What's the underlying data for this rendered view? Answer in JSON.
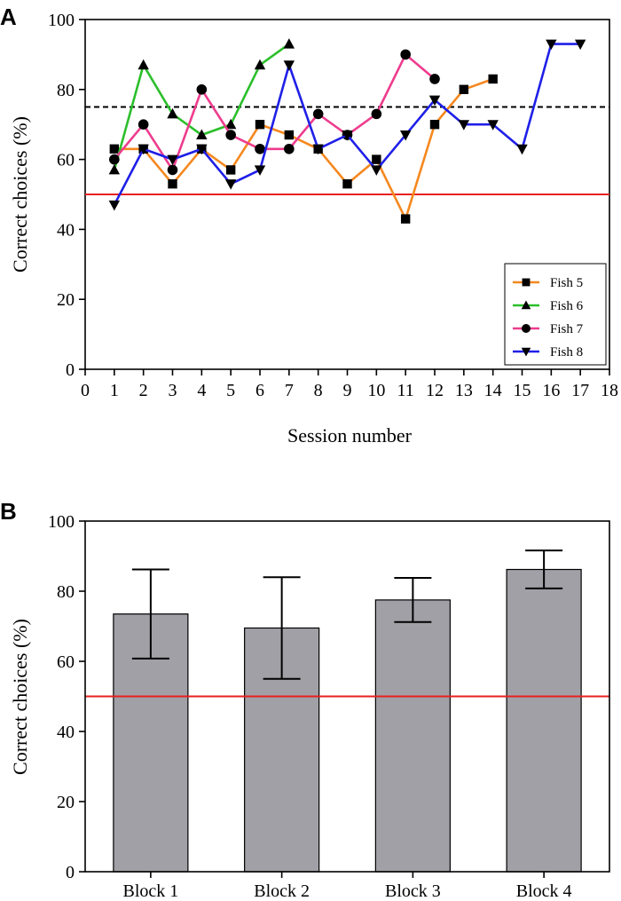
{
  "chart_data": [
    {
      "panel_label": "A",
      "type": "line",
      "title": "",
      "xlabel": "Session number",
      "ylabel": "Correct choices (%)",
      "xlim": [
        0,
        18
      ],
      "ylim": [
        0,
        100
      ],
      "xticks": [
        "0",
        "1",
        "2",
        "3",
        "4",
        "5",
        "6",
        "7",
        "8",
        "9",
        "10",
        "11",
        "12",
        "13",
        "14",
        "15",
        "16",
        "17",
        "18"
      ],
      "yticks": [
        "0",
        "20",
        "40",
        "60",
        "80",
        "100"
      ],
      "reference_lines": [
        {
          "name": "chance level",
          "y": 50,
          "color": "#e8201f",
          "style": "solid"
        },
        {
          "name": "criterion",
          "y": 75,
          "color": "#000000",
          "style": "dashed"
        }
      ],
      "legend_position": "bottom-right",
      "series": [
        {
          "name": "Fish 5",
          "color": "#f5881f",
          "marker": "square",
          "x": [
            1,
            2,
            3,
            4,
            5,
            6,
            7,
            8,
            9,
            10,
            11,
            12,
            13,
            14
          ],
          "values": [
            63,
            63,
            53,
            63,
            57,
            70,
            67,
            63,
            53,
            60,
            43,
            70,
            80,
            83
          ]
        },
        {
          "name": "Fish 6",
          "color": "#2bbf2b",
          "marker": "triangle-up",
          "x": [
            1,
            2,
            3,
            4,
            5,
            6,
            7
          ],
          "values": [
            57,
            87,
            73,
            67,
            70,
            87,
            93
          ]
        },
        {
          "name": "Fish 7",
          "color": "#ee3c8e",
          "marker": "circle",
          "x": [
            1,
            2,
            3,
            4,
            5,
            6,
            7,
            8,
            9,
            10,
            11,
            12
          ],
          "values": [
            60,
            70,
            57,
            80,
            67,
            63,
            63,
            73,
            67,
            73,
            90,
            83
          ]
        },
        {
          "name": "Fish 8",
          "color": "#1f1fe8",
          "marker": "triangle-down",
          "x": [
            1,
            2,
            3,
            4,
            5,
            6,
            7,
            8,
            9,
            10,
            11,
            12,
            13,
            14,
            15,
            16,
            17
          ],
          "values": [
            47,
            63,
            60,
            63,
            53,
            57,
            87,
            63,
            67,
            57,
            67,
            77,
            70,
            70,
            63,
            93,
            93
          ]
        }
      ]
    },
    {
      "panel_label": "B",
      "type": "bar",
      "title": "",
      "xlabel": "",
      "ylabel": "Correct choices (%)",
      "ylim": [
        0,
        100
      ],
      "yticks": [
        "0",
        "20",
        "40",
        "60",
        "80",
        "100"
      ],
      "categories": [
        "Block 1",
        "Block 2",
        "Block 3",
        "Block 4"
      ],
      "values": [
        73.5,
        69.5,
        77.5,
        86.2
      ],
      "error_low": [
        60.8,
        55.0,
        71.2,
        80.8
      ],
      "error_high": [
        86.2,
        84.0,
        83.8,
        91.6
      ],
      "bar_color": "#a1a0a6",
      "reference_lines": [
        {
          "name": "chance level",
          "y": 50,
          "color": "#e8201f",
          "style": "solid"
        }
      ]
    }
  ]
}
